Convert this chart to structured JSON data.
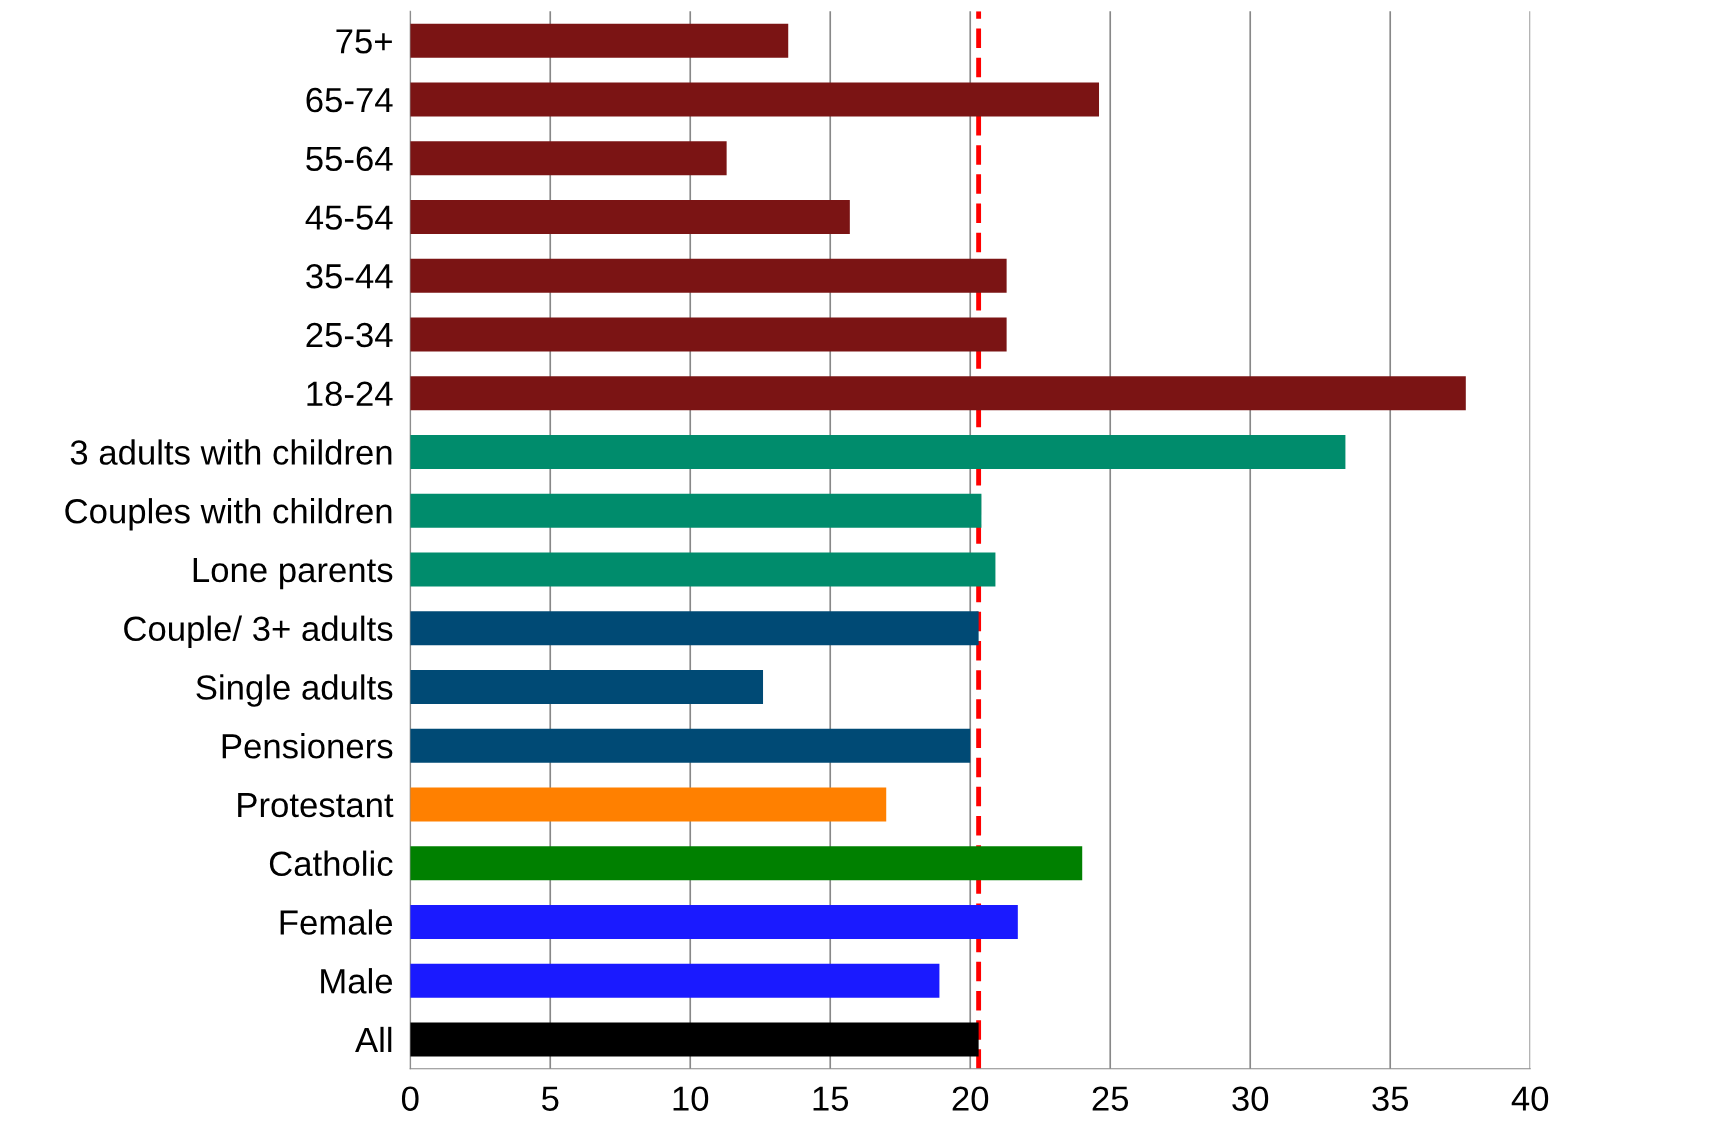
{
  "chart_data": {
    "type": "bar",
    "orientation": "horizontal",
    "categories": [
      "75+",
      "65-74",
      "55-64",
      "45-54",
      "35-44",
      "25-34",
      "18-24",
      "3 adults with children",
      "Couples with children",
      "Lone parents",
      "Couple/ 3+ adults",
      "Single adults",
      "Pensioners",
      "Protestant",
      "Catholic",
      "Female",
      "Male",
      "All"
    ],
    "values": [
      13.5,
      24.6,
      11.3,
      15.7,
      21.3,
      21.3,
      37.7,
      33.4,
      20.4,
      20.9,
      20.3,
      12.6,
      20.0,
      17.0,
      24.0,
      21.7,
      18.9,
      20.3
    ],
    "colors": [
      "#7b1414",
      "#7b1414",
      "#7b1414",
      "#7b1414",
      "#7b1414",
      "#7b1414",
      "#7b1414",
      "#008c6c",
      "#008c6c",
      "#008c6c",
      "#004a75",
      "#004a75",
      "#004a75",
      "#ff8000",
      "#008000",
      "#1a1aff",
      "#1a1aff",
      "#000000"
    ],
    "xlim": [
      0,
      40
    ],
    "xticks": [
      0,
      5,
      10,
      15,
      20,
      25,
      30,
      35,
      40
    ],
    "grid": "x",
    "legend": false,
    "ref_lines": [
      {
        "axis": "x",
        "value": 20.3,
        "color": "#ff0000",
        "line_style": "dashed"
      }
    ]
  }
}
